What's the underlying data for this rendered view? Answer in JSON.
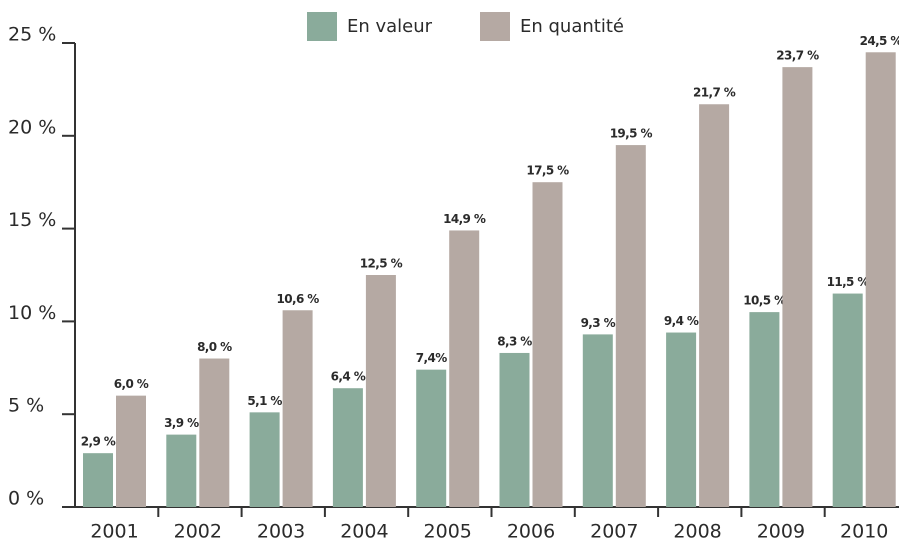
{
  "chart_data": {
    "type": "bar",
    "categories": [
      "2001",
      "2002",
      "2003",
      "2004",
      "2005",
      "2006",
      "2007",
      "2008",
      "2009",
      "2010"
    ],
    "series": [
      {
        "name": "En valeur",
        "color": "#8aab9b",
        "values": [
          2.9,
          3.9,
          5.1,
          6.4,
          7.4,
          8.3,
          9.3,
          9.4,
          10.5,
          11.5
        ],
        "value_labels": [
          "2,9 %",
          "3,9 %",
          "5,1 %",
          "6,4 %",
          "7,4%",
          "8,3 %",
          "9,3 %",
          "9,4 %",
          "10,5 %",
          "11,5 %"
        ]
      },
      {
        "name": "En quantité",
        "color": "#b5a9a3",
        "values": [
          6.0,
          8.0,
          10.6,
          12.5,
          14.9,
          17.5,
          19.5,
          21.7,
          23.7,
          24.5
        ],
        "value_labels": [
          "6,0 %",
          "8,0 %",
          "10,6 %",
          "12,5 %",
          "14,9 %",
          "17,5 %",
          "19,5 %",
          "21,7 %",
          "23,7 %",
          "24,5 %"
        ]
      }
    ],
    "ylim": [
      0,
      25
    ],
    "yticks": [
      {
        "value": 0,
        "label": "0 %"
      },
      {
        "value": 5,
        "label": "5 %"
      },
      {
        "value": 10,
        "label": "10 %"
      },
      {
        "value": 15,
        "label": "15 %"
      },
      {
        "value": 20,
        "label": "20 %"
      },
      {
        "value": 25,
        "label": "25 %"
      }
    ],
    "legend": "top"
  }
}
